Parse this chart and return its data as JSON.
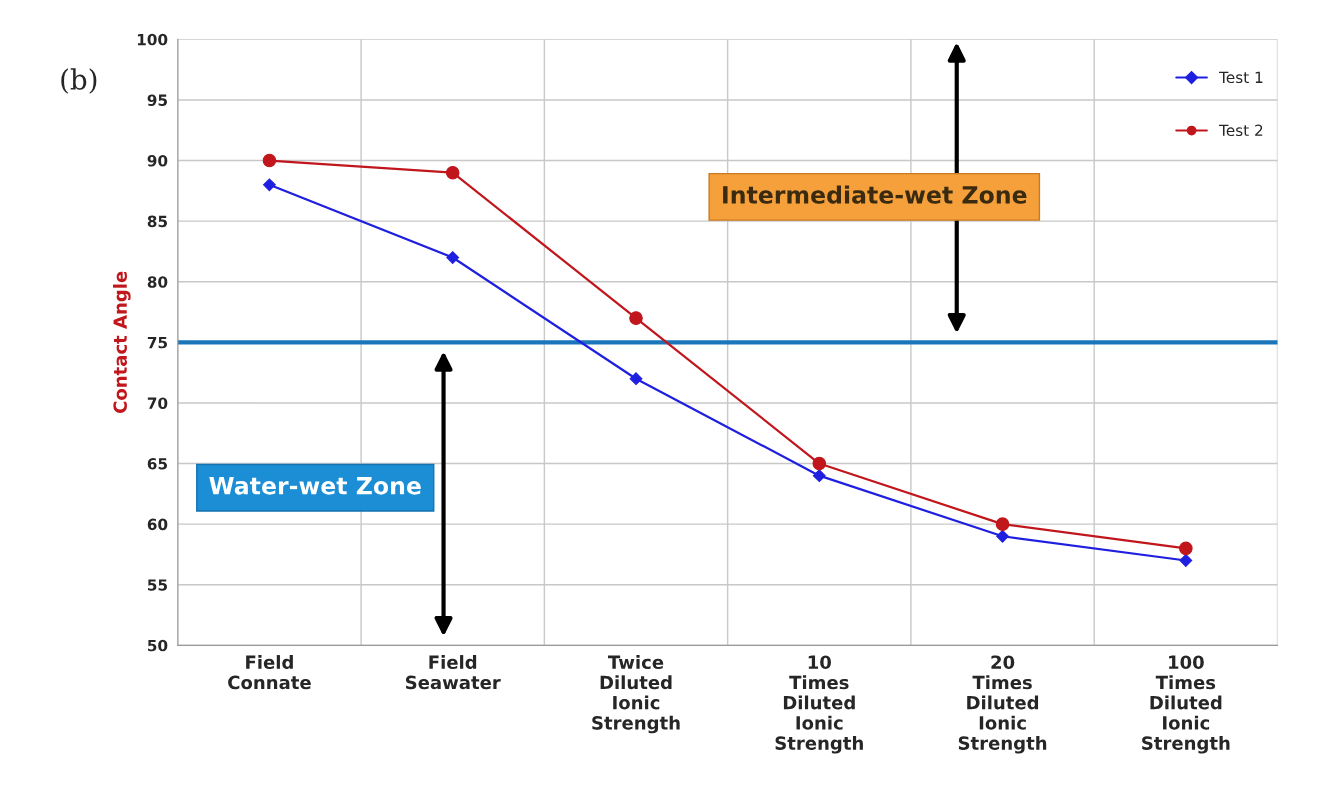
{
  "chart_data": {
    "type": "line",
    "ylabel": "Contact Angle",
    "categories": [
      "Field\nConnate",
      "Field\nSeawater",
      "Twice\nDiluted\nIonic\nStrength",
      "10\nTimes\nDiluted\nIonic\nStrength",
      "20\nTimes\nDiluted\nIonic\nStrength",
      "100\nTimes\nDiluted\nIonic\nStrength"
    ],
    "series": [
      {
        "name": "Test 1",
        "color": "#1f1fe0",
        "marker": "diamond",
        "values": [
          88,
          82,
          72,
          64,
          59,
          57
        ]
      },
      {
        "name": "Test 2",
        "color": "#c0161c",
        "marker": "circle",
        "values": [
          90,
          89,
          77,
          65,
          60,
          58
        ]
      }
    ],
    "ylim": [
      50,
      100
    ],
    "yticks": [
      50,
      55,
      60,
      65,
      70,
      75,
      80,
      85,
      90,
      95,
      100
    ],
    "ref_lines": [
      {
        "axis": "y",
        "value": 75,
        "color": "#1b75bb"
      }
    ],
    "annotations": [
      "(b)",
      "Intermediate-wet Zone",
      "Water-wet Zone"
    ],
    "grid": true,
    "legend": "top right"
  }
}
